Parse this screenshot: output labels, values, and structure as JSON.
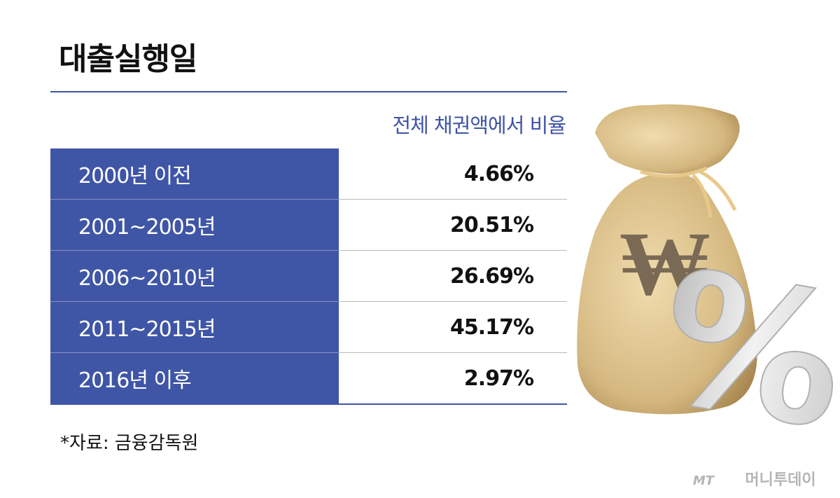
{
  "header": {
    "title": "대출실행일"
  },
  "table": {
    "column_header": "전체 채권액에서 비율",
    "rows": [
      [
        "2000년 이전",
        "4.66%"
      ],
      [
        "2001~2005년",
        "20.51%"
      ],
      [
        "2006~2010년",
        "26.69%"
      ],
      [
        "2011~2015년",
        "45.17%"
      ],
      [
        "2016년 이후",
        "2.97%"
      ]
    ]
  },
  "footer": {
    "source": "*자료: 금융감독원",
    "watermark_logo": "MT",
    "watermark": "머니투데이"
  },
  "illustration": {
    "bag_symbol": "₩",
    "percent_symbol": "%"
  }
}
